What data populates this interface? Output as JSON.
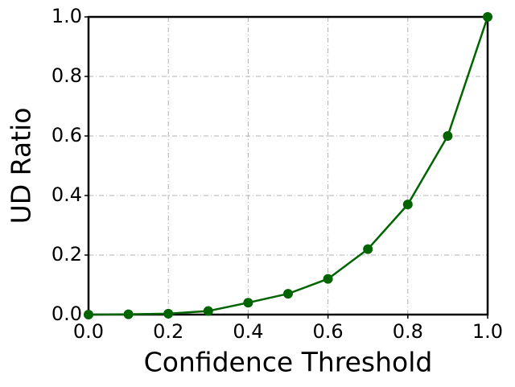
{
  "chart_data": {
    "type": "line",
    "x_label": "Confidence Threshold",
    "y_label": "UD Ratio",
    "x": [
      0,
      0.1,
      0.2,
      0.3,
      0.4,
      0.5,
      0.6,
      0.7,
      0.8,
      0.9,
      1.0
    ],
    "series": [
      {
        "color": "#006400",
        "values": [
          0,
          0.001,
          0.003,
          0.012,
          0.04,
          0.07,
          0.12,
          0.22,
          0.37,
          0.6,
          1.0
        ]
      }
    ],
    "xlim": [
      0,
      1
    ],
    "ylim": [
      0,
      1
    ],
    "xticks": [
      {
        "value": 0,
        "label": "0.0"
      },
      {
        "value": 0.2,
        "label": "0.2"
      },
      {
        "value": 0.4,
        "label": "0.4"
      },
      {
        "value": 0.6,
        "label": "0.6"
      },
      {
        "value": 0.8,
        "label": "0.8"
      },
      {
        "value": 1,
        "label": "1.0"
      }
    ],
    "yticks": [
      {
        "value": 0,
        "label": "0.0"
      },
      {
        "value": 0.2,
        "label": "0.2"
      },
      {
        "value": 0.4,
        "label": "0.4"
      },
      {
        "value": 0.6,
        "label": "0.6"
      },
      {
        "value": 0.8,
        "label": "0.8"
      },
      {
        "value": 1,
        "label": "1.0"
      }
    ],
    "grid": true
  }
}
